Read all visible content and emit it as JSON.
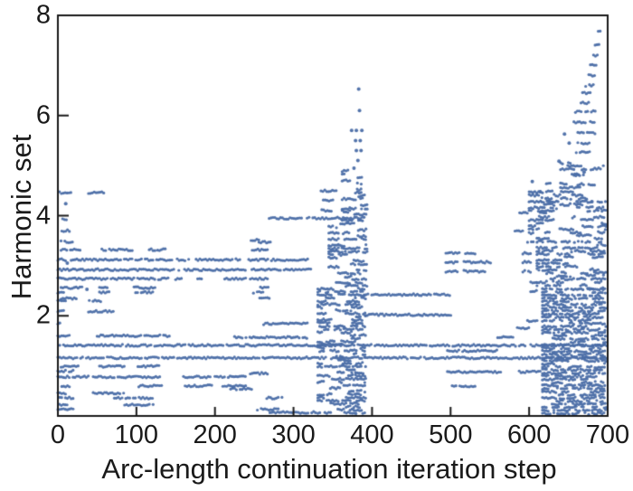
{
  "chart_data": {
    "type": "scatter",
    "title": "",
    "xlabel": "Arc-length continuation iteration step",
    "ylabel": "Harmonic set",
    "xlim": [
      0,
      700
    ],
    "ylim": [
      0,
      8
    ],
    "xticks": [
      0,
      100,
      200,
      300,
      400,
      500,
      600,
      700
    ],
    "yticks": [
      2,
      4,
      6,
      8
    ],
    "grid": false,
    "legend": false,
    "marker_color": "#4a6da6",
    "axis_color": "#1a1a1a",
    "background": "#ffffff",
    "segments": [
      [
        4.46,
        2,
        17
      ],
      [
        4.46,
        39,
        59
      ],
      [
        3.92,
        6,
        13
      ],
      [
        3.7,
        5,
        16
      ],
      [
        3.48,
        4,
        19
      ],
      [
        3.32,
        4,
        29
      ],
      [
        3.32,
        56,
        97
      ],
      [
        3.32,
        114,
        124
      ],
      [
        3.32,
        127,
        137
      ],
      [
        3.32,
        245,
        268
      ],
      [
        3.47,
        256,
        272
      ],
      [
        3.12,
        0,
        146
      ],
      [
        3.12,
        152,
        168
      ],
      [
        3.12,
        176,
        233
      ],
      [
        3.12,
        243,
        268
      ],
      [
        3.12,
        272,
        318
      ],
      [
        2.92,
        0,
        148
      ],
      [
        2.92,
        154,
        240
      ],
      [
        2.92,
        247,
        322
      ],
      [
        2.74,
        0,
        142
      ],
      [
        2.74,
        150,
        162
      ],
      [
        2.74,
        178,
        185
      ],
      [
        2.74,
        210,
        240
      ],
      [
        2.74,
        245,
        268
      ],
      [
        2.56,
        4,
        31
      ],
      [
        2.56,
        53,
        64
      ],
      [
        2.56,
        97,
        126
      ],
      [
        2.56,
        258,
        268
      ],
      [
        2.47,
        0,
        9
      ],
      [
        2.47,
        53,
        67
      ],
      [
        2.47,
        99,
        122
      ],
      [
        2.47,
        249,
        262
      ],
      [
        2.35,
        4,
        24
      ],
      [
        2.35,
        257,
        272
      ],
      [
        2.3,
        0,
        10
      ],
      [
        2.3,
        40,
        56
      ],
      [
        2.09,
        0,
        8
      ],
      [
        2.09,
        39,
        72
      ],
      [
        1.84,
        0,
        4
      ],
      [
        1.84,
        262,
        318
      ],
      [
        1.6,
        0,
        15
      ],
      [
        1.6,
        50,
        143
      ],
      [
        1.57,
        225,
        318
      ],
      [
        1.41,
        0,
        700
      ],
      [
        1.16,
        0,
        700
      ],
      [
        0.99,
        4,
        28
      ],
      [
        0.99,
        53,
        85
      ],
      [
        0.99,
        102,
        131
      ],
      [
        0.9,
        0,
        20
      ],
      [
        0.85,
        245,
        268
      ],
      [
        0.78,
        0,
        40
      ],
      [
        0.78,
        45,
        130
      ],
      [
        0.78,
        160,
        196
      ],
      [
        0.78,
        200,
        240
      ],
      [
        0.6,
        5,
        15
      ],
      [
        0.6,
        103,
        133
      ],
      [
        0.6,
        162,
        196
      ],
      [
        0.6,
        210,
        240
      ],
      [
        0.54,
        220,
        249
      ],
      [
        0.45,
        0,
        10
      ],
      [
        0.45,
        45,
        84
      ],
      [
        0.36,
        0,
        20
      ],
      [
        0.36,
        72,
        122
      ],
      [
        0.36,
        266,
        287
      ],
      [
        0.22,
        2,
        15
      ],
      [
        0.22,
        85,
        122
      ],
      [
        0.13,
        0,
        20
      ],
      [
        0.13,
        254,
        281
      ],
      [
        0.07,
        270,
        330
      ],
      [
        3.95,
        269,
        390
      ],
      [
        3.52,
        246,
        258
      ],
      [
        4.5,
        335,
        355
      ],
      [
        4.3,
        338,
        352
      ],
      [
        4.1,
        336,
        350
      ],
      [
        2.42,
        390,
        500
      ],
      [
        2.02,
        389,
        502
      ],
      [
        3.25,
        494,
        512
      ],
      [
        3.25,
        519,
        533
      ],
      [
        3.07,
        494,
        512
      ],
      [
        3.07,
        517,
        552
      ],
      [
        2.89,
        494,
        510
      ],
      [
        2.89,
        517,
        545
      ],
      [
        1.3,
        496,
        560
      ],
      [
        0.88,
        496,
        565
      ],
      [
        0.88,
        585,
        615
      ],
      [
        0.6,
        502,
        532
      ],
      [
        1.57,
        560,
        580
      ],
      [
        1.75,
        585,
        600
      ],
      [
        1.9,
        598,
        612
      ],
      [
        2.49,
        602,
        610
      ],
      [
        2.67,
        602,
        610
      ],
      [
        2.89,
        592,
        604
      ],
      [
        3.07,
        592,
        604
      ],
      [
        3.25,
        592,
        604
      ],
      [
        3.47,
        598,
        607
      ],
      [
        3.65,
        600,
        607
      ],
      [
        3.7,
        582,
        594
      ],
      [
        3.85,
        610,
        618
      ],
      [
        4.06,
        588,
        600
      ],
      [
        4.06,
        614,
        622
      ],
      [
        4.28,
        616,
        628
      ],
      [
        4.28,
        632,
        638
      ],
      [
        4.48,
        622,
        630
      ],
      [
        4.64,
        622,
        628
      ],
      [
        4.64,
        640,
        648
      ],
      [
        4.84,
        658,
        664
      ],
      [
        5.05,
        640,
        645
      ],
      [
        5.05,
        650,
        656
      ],
      [
        5.27,
        660,
        679
      ],
      [
        5.45,
        662,
        678
      ],
      [
        5.65,
        662,
        684
      ],
      [
        5.87,
        657,
        672
      ],
      [
        5.87,
        678,
        684
      ],
      [
        6.08,
        659,
        668
      ],
      [
        6.08,
        672,
        686
      ],
      [
        6.25,
        666,
        678
      ],
      [
        6.45,
        668,
        680
      ],
      [
        6.6,
        672,
        682
      ],
      [
        6.8,
        676,
        684
      ],
      [
        7.0,
        678,
        686
      ],
      [
        7.2,
        682,
        688
      ],
      [
        7.4,
        684,
        690
      ],
      [
        7.67,
        688,
        692
      ]
    ],
    "points": [
      [
        383,
        6.53
      ],
      [
        384,
        6.1
      ],
      [
        374,
        5.7
      ],
      [
        380,
        5.7
      ],
      [
        387,
        5.7
      ],
      [
        379,
        5.5
      ],
      [
        385,
        5.5
      ],
      [
        380,
        5.3
      ],
      [
        386,
        5.3
      ],
      [
        382,
        5.1
      ],
      [
        377,
        4.95
      ],
      [
        10,
        4.24
      ],
      [
        12,
        3.05
      ],
      [
        37,
        2.53
      ],
      [
        645,
        5.63
      ],
      [
        651,
        5.45
      ],
      [
        638,
        5.09
      ],
      [
        670,
        4.87
      ],
      [
        604,
        4.68
      ],
      [
        614,
        4.48
      ],
      [
        661,
        4.28
      ],
      [
        680,
        4.28
      ]
    ],
    "dense_regions": [
      {
        "x0": 331,
        "x1": 392,
        "v0": 0.06,
        "v1": 2.6,
        "density": 0.62
      },
      {
        "x0": 345,
        "x1": 394,
        "v0": 2.6,
        "v1": 3.9,
        "density": 0.5
      },
      {
        "x0": 362,
        "x1": 394,
        "v0": 3.9,
        "v1": 4.95,
        "density": 0.38
      },
      {
        "x0": 617,
        "x1": 698,
        "v0": 0.05,
        "v1": 2.55,
        "density": 0.82
      },
      {
        "x0": 610,
        "x1": 698,
        "v0": 2.55,
        "v1": 3.6,
        "density": 0.62
      },
      {
        "x0": 600,
        "x1": 698,
        "v0": 3.6,
        "v1": 4.5,
        "density": 0.35
      },
      {
        "x0": 640,
        "x1": 696,
        "v0": 4.5,
        "v1": 5.15,
        "density": 0.18
      }
    ]
  }
}
